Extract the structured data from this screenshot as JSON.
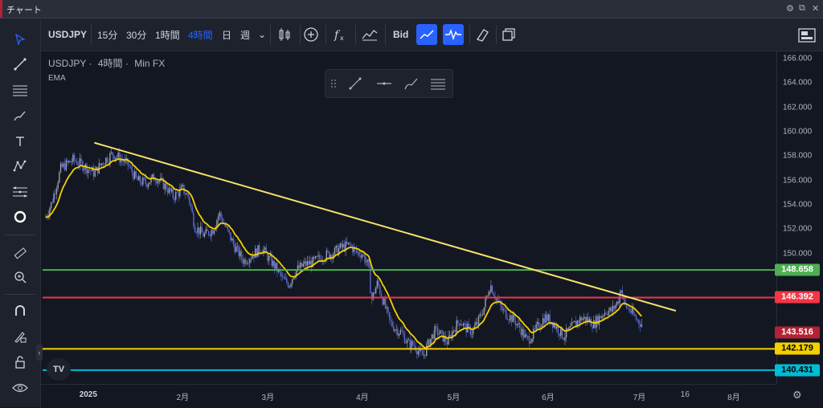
{
  "window": {
    "title": "チャート",
    "controls": [
      "⚙",
      "⧉",
      "✕"
    ]
  },
  "toolbar": {
    "symbol": "USDJPY",
    "intervals": [
      {
        "label": "15分",
        "active": false
      },
      {
        "label": "30分",
        "active": false
      },
      {
        "label": "1時間",
        "active": false
      },
      {
        "label": "4時間",
        "active": true
      },
      {
        "label": "日",
        "active": false
      },
      {
        "label": "週",
        "active": false
      }
    ],
    "dropdown": "⌄",
    "bid_label": "Bid"
  },
  "legend": {
    "symbol": "USDJPY",
    "interval": "4時間",
    "source": "Min FX",
    "separator": "·",
    "indicator": "EMA"
  },
  "colors": {
    "background": "#131722",
    "up_candle": "#9aa0ac",
    "down_candle": "#5b6bd8",
    "ema": "#f5d000",
    "trendline": "#f5e26b",
    "level_green": "#4caf50",
    "level_red": "#f23645",
    "level_yellow": "#f5d000",
    "level_cyan": "#00bcd4",
    "last_price": "#b22234"
  },
  "chart_data": {
    "type": "candlestick",
    "title": "USDJPY · 4時間 · Min FX",
    "indicator": "EMA",
    "y_axis": {
      "min": 139.3,
      "max": 166.6,
      "ticks": [
        "166.000",
        "164.000",
        "162.000",
        "160.000",
        "158.000",
        "156.000",
        "154.000",
        "152.000",
        "150.000"
      ]
    },
    "x_axis": {
      "ticks": [
        {
          "label": "2025",
          "day": 0,
          "bold": true
        },
        {
          "label": "2月",
          "day": 31
        },
        {
          "label": "3月",
          "day": 59
        },
        {
          "label": "4月",
          "day": 90
        },
        {
          "label": "5月",
          "day": 120
        },
        {
          "label": "6月",
          "day": 151
        },
        {
          "label": "7月",
          "day": 181
        },
        {
          "label": "16",
          "day": 196
        },
        {
          "label": "8月",
          "day": 212
        }
      ],
      "min_day": -15,
      "max_day": 226
    },
    "price_path": [
      [
        -14,
        153.0
      ],
      [
        -12,
        154.2
      ],
      [
        -9,
        157.0
      ],
      [
        -5,
        157.7
      ],
      [
        -2,
        157.3
      ],
      [
        2,
        156.6
      ],
      [
        5,
        157.6
      ],
      [
        8,
        158.2
      ],
      [
        10,
        157.9
      ],
      [
        13,
        157.3
      ],
      [
        16,
        156.0
      ],
      [
        19,
        155.8
      ],
      [
        22,
        156.3
      ],
      [
        25,
        155.6
      ],
      [
        28,
        154.7
      ],
      [
        31,
        155.3
      ],
      [
        33,
        154.6
      ],
      [
        35,
        152.2
      ],
      [
        38,
        151.5
      ],
      [
        41,
        152.0
      ],
      [
        43,
        153.3
      ],
      [
        45,
        152.2
      ],
      [
        48,
        150.6
      ],
      [
        51,
        149.4
      ],
      [
        54,
        149.9
      ],
      [
        57,
        150.5
      ],
      [
        59,
        149.7
      ],
      [
        62,
        148.7
      ],
      [
        64,
        147.8
      ],
      [
        66,
        147.5
      ],
      [
        68,
        148.6
      ],
      [
        71,
        149.1
      ],
      [
        74,
        149.3
      ],
      [
        77,
        149.8
      ],
      [
        80,
        150.0
      ],
      [
        83,
        150.5
      ],
      [
        86,
        150.7
      ],
      [
        88,
        150.1
      ],
      [
        90,
        150.0
      ],
      [
        92,
        149.0
      ],
      [
        93,
        146.2
      ],
      [
        95,
        147.6
      ],
      [
        97,
        146.0
      ],
      [
        99,
        144.4
      ],
      [
        101,
        143.8
      ],
      [
        103,
        143.5
      ],
      [
        105,
        142.6
      ],
      [
        107,
        142.5
      ],
      [
        109,
        141.8
      ],
      [
        110,
        141.6
      ],
      [
        112,
        142.8
      ],
      [
        114,
        143.7
      ],
      [
        116,
        143.3
      ],
      [
        118,
        142.7
      ],
      [
        120,
        143.8
      ],
      [
        122,
        144.5
      ],
      [
        124,
        143.9
      ],
      [
        126,
        143.6
      ],
      [
        128,
        144.4
      ],
      [
        130,
        145.6
      ],
      [
        132,
        147.5
      ],
      [
        134,
        146.3
      ],
      [
        136,
        145.3
      ],
      [
        138,
        144.9
      ],
      [
        140,
        144.5
      ],
      [
        142,
        143.8
      ],
      [
        144,
        142.9
      ],
      [
        146,
        143.3
      ],
      [
        148,
        144.2
      ],
      [
        150,
        144.8
      ],
      [
        152,
        144.5
      ],
      [
        154,
        143.9
      ],
      [
        156,
        143.2
      ],
      [
        158,
        143.7
      ],
      [
        160,
        144.3
      ],
      [
        162,
        144.7
      ],
      [
        164,
        144.6
      ],
      [
        166,
        144.2
      ],
      [
        168,
        144.8
      ],
      [
        170,
        145.3
      ],
      [
        172,
        145.3
      ],
      [
        174,
        146.1
      ],
      [
        175,
        147.3
      ],
      [
        176,
        145.8
      ],
      [
        178,
        145.3
      ],
      [
        180,
        144.6
      ],
      [
        182,
        144.2
      ]
    ],
    "trendline": {
      "start": {
        "day": 2,
        "price": 159.1
      },
      "end": {
        "day": 193,
        "price": 145.3
      }
    },
    "levels": [
      {
        "value": 148.658,
        "label": "148.658",
        "color": "#4caf50",
        "label_bg": "#4caf50",
        "label_fg": "#ffffff"
      },
      {
        "value": 146.392,
        "label": "146.392",
        "color": "#f23645",
        "label_bg": "#f23645",
        "label_fg": "#ffffff"
      },
      {
        "value": 142.179,
        "label": "142.179",
        "color": "#f5d000",
        "label_bg": "#f5d000",
        "label_fg": "#000000"
      },
      {
        "value": 140.431,
        "label": "140.431",
        "color": "#00bcd4",
        "label_bg": "#00bcd4",
        "label_fg": "#000000"
      }
    ],
    "last_price": {
      "value": 143.516,
      "label": "143.516"
    }
  }
}
